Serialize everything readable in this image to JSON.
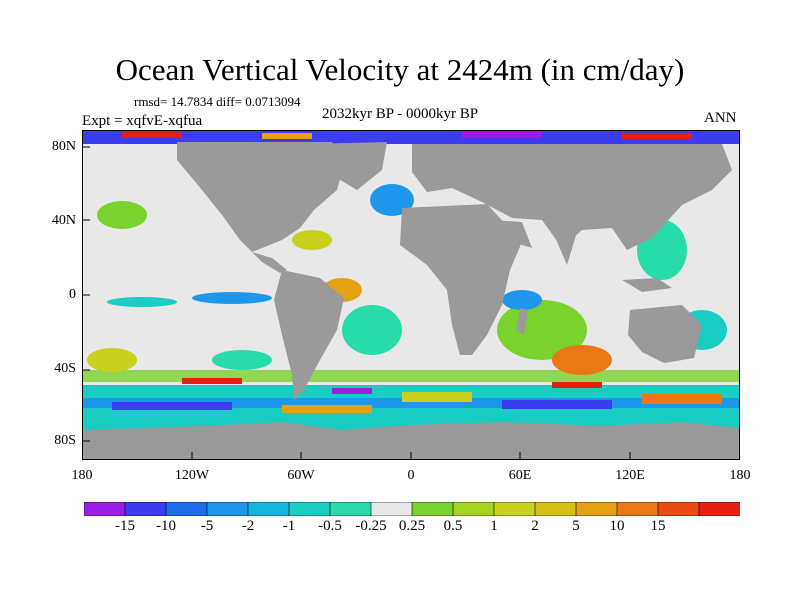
{
  "title": "Ocean Vertical Velocity at 2424m (in cm/day)",
  "stats": "rmsd= 14.7834 diff= 0.0713094",
  "experiment": "Expt = xqfvE-xqfua",
  "period": "2032kyr BP - 0000kyr BP",
  "season": "ANN",
  "map": {
    "land_color": "#9a9a9a",
    "near_zero_color": "#e8e8e8",
    "lat_labels": [
      "80N",
      "40N",
      "0",
      "40S",
      "80S"
    ],
    "lon_labels": [
      "180",
      "120W",
      "60W",
      "0",
      "60E",
      "120E",
      "180"
    ]
  },
  "colorbar": {
    "colors": [
      "#9b1ee6",
      "#3c3cf0",
      "#1e6eeb",
      "#1e96eb",
      "#14b4dc",
      "#19cdc3",
      "#28dcaa",
      "#e8e8e8",
      "#7ad22d",
      "#a5d21e",
      "#c8d21e",
      "#d7be14",
      "#e6a014",
      "#eb7814",
      "#eb4b14",
      "#e61e14"
    ],
    "labels": [
      "-15",
      "-10",
      "-5",
      "-2",
      "-1",
      "-0.5",
      "-0.25",
      "0.25",
      "0.5",
      "1",
      "2",
      "5",
      "10",
      "15"
    ]
  }
}
